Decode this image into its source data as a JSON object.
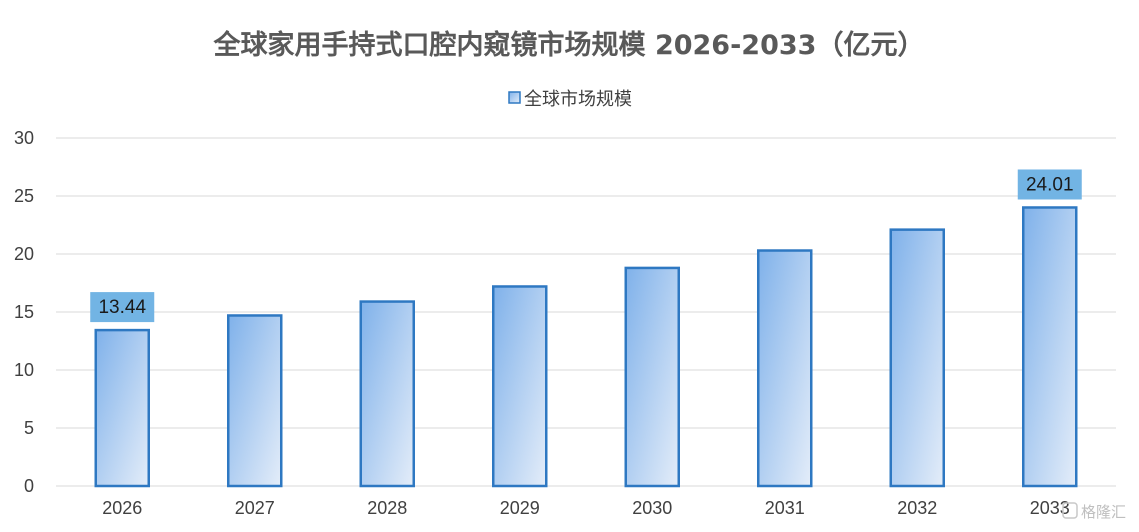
{
  "chart_data": {
    "type": "bar",
    "title": "全球家用手持式口腔内窥镜市场规模 2026-2033（亿元）",
    "categories": [
      "2026",
      "2027",
      "2028",
      "2029",
      "2030",
      "2031",
      "2032",
      "2033"
    ],
    "series": [
      {
        "name": "全球市场规模",
        "values": [
          13.44,
          14.7,
          15.9,
          17.2,
          18.8,
          20.3,
          22.1,
          24.01
        ]
      }
    ],
    "data_labels": {
      "0": "13.44",
      "7": "24.01"
    },
    "ylim": [
      0,
      30
    ],
    "yticks": [
      0,
      5,
      10,
      15,
      20,
      25,
      30
    ],
    "grid": true,
    "legend_position": "top",
    "colors": {
      "bar_gradient_start": "#7fb1ea",
      "bar_gradient_end": "#e4edf9",
      "bar_border": "#2e78c2",
      "label_bg": "#72b4e4",
      "grid": "#d9d9d9"
    }
  },
  "watermark": "格隆汇"
}
